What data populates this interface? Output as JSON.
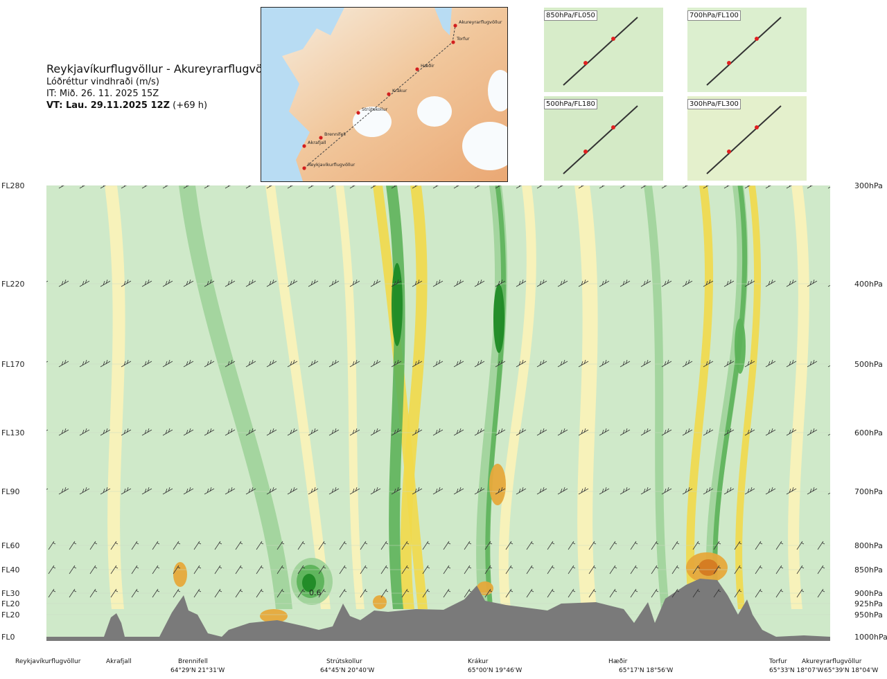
{
  "header": {
    "title": "Reykjavíkurflugvöllur - Akureyrarflugvöllur",
    "variable": "Lóðréttur vindhraði (m/s)",
    "issue_time": "IT: Mið. 26. 11. 2025 15Z",
    "valid_time_bold": "VT: Lau. 29.11.2025 12Z",
    "valid_time_offset": " (+69 h)"
  },
  "map": {
    "places": [
      "Akureyrarflugvöllur",
      "Torfur",
      "Hæðir",
      "Krákur",
      "Strútskollur",
      "Brennifell",
      "Akrafjall",
      "Reykjavíkurflugvöllur"
    ]
  },
  "mini_maps": [
    "850hPa/FL050",
    "700hPa/FL100",
    "500hPa/FL180",
    "300hPa/FL300"
  ],
  "colors": {
    "light_green": "#cfe9c9",
    "green": "#9fd39a",
    "mid_green": "#5db35a",
    "dark_green": "#1f8a25",
    "light_yellow": "#fbf3b8",
    "yellow": "#f1d94a",
    "orange": "#e6a93b",
    "dark_orange": "#d47a22",
    "terrain": "#7a7a7a"
  },
  "chart_data": {
    "type": "heatmap",
    "title": "Lóðréttur vindhraði (m/s)",
    "left_axis_ticks": [
      "FL280",
      "FL220",
      "FL170",
      "FL130",
      "FL90",
      "FL60",
      "FL40",
      "FL30",
      "FL20",
      "FL20",
      "FL0"
    ],
    "right_axis_ticks": [
      "300hPa",
      "400hPa",
      "500hPa",
      "600hPa",
      "700hPa",
      "800hPa",
      "850hPa",
      "900hPa",
      "925hPa",
      "950hPa",
      "1000hPa"
    ],
    "pressure_levels_hpa": [
      300,
      400,
      500,
      600,
      700,
      800,
      850,
      900,
      925,
      950,
      1000
    ],
    "annotations": [
      "0.6"
    ],
    "stations": [
      {
        "name": "Reykjavíkurflugvöllur",
        "coord": ""
      },
      {
        "name": "Akrafjall",
        "coord": ""
      },
      {
        "name": "Brennifell",
        "coord": "64°29'N 21°31'W"
      },
      {
        "name": "Strútskollur",
        "coord": "64°45'N 20°40'W"
      },
      {
        "name": "Krákur",
        "coord": "65°00'N 19°46'W"
      },
      {
        "name": "Hæðir",
        "coord": "65°17'N 18°56'W"
      },
      {
        "name": "Torfur",
        "coord": "65°33'N 18°07'W"
      },
      {
        "name": "Akureyrarflugvöllur",
        "coord": "65°39'N 18°04'W"
      }
    ],
    "legend": "none",
    "grid": true
  }
}
